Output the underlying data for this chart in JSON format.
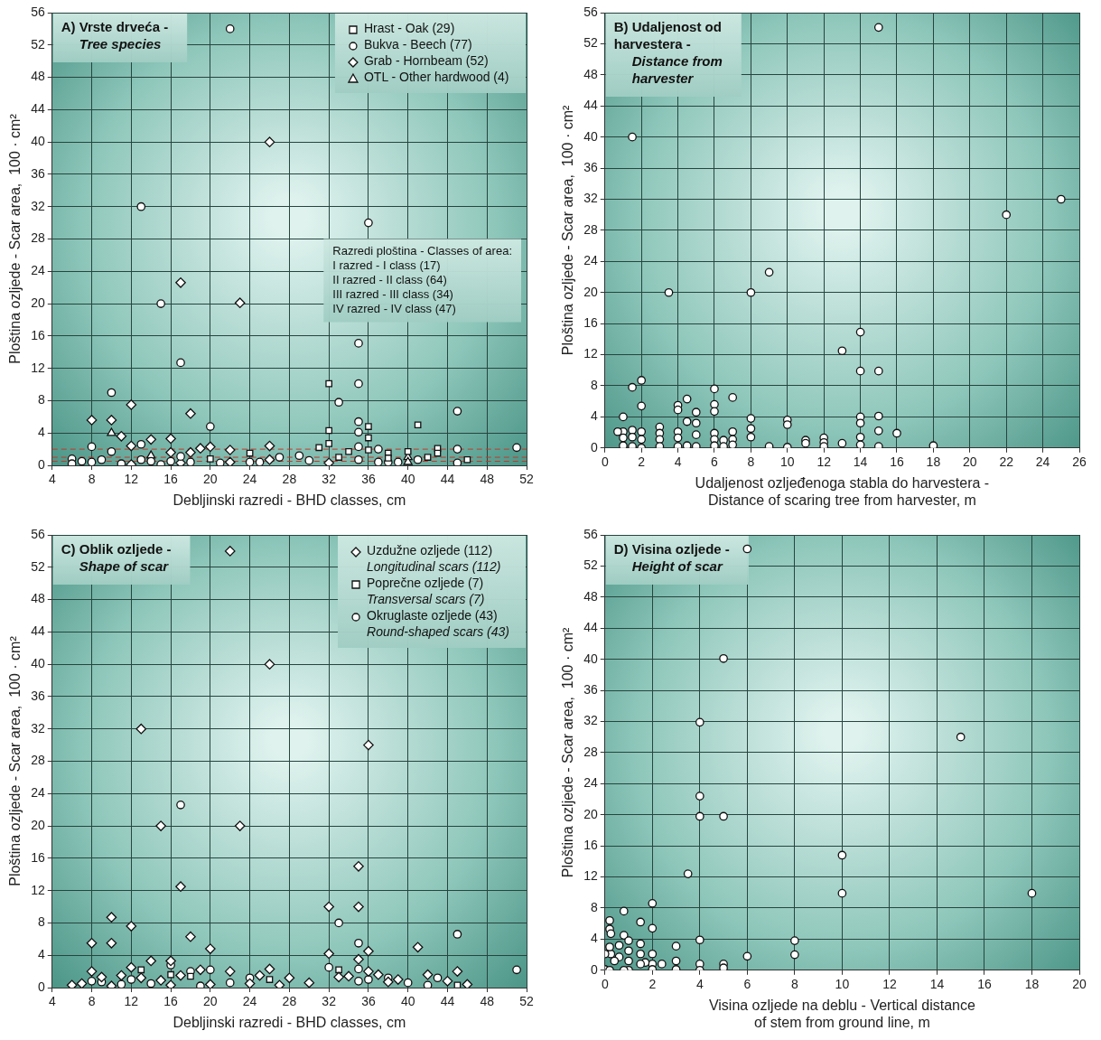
{
  "chart_data": [
    {
      "type": "scatter",
      "title": "A) Vrste drveća -",
      "subtitle": "Tree species",
      "xlabel": "Debljinski razredi - BHD classes, cm",
      "ylabel": "Ploština ozljede - Scar area,  100 · cm²",
      "xlim": [
        4,
        52
      ],
      "xticks": [
        4,
        8,
        12,
        16,
        20,
        24,
        28,
        32,
        36,
        40,
        44,
        48,
        52
      ],
      "ylim": [
        0,
        56
      ],
      "yticks": [
        0,
        4,
        8,
        12,
        16,
        20,
        24,
        28,
        32,
        36,
        40,
        44,
        48,
        52,
        56
      ],
      "grid": true,
      "legend": "top right",
      "annotations": [
        "Razredi ploština - Classes of area:",
        "I razred - I class (17)",
        "II razred - II class (64)",
        "III razred - III class (34)",
        "IV razred - IV class (47)"
      ],
      "ref_lines": [
        {
          "axis": "y",
          "value": 0.5,
          "label": null,
          "color": "#c0392b",
          "line_style": "dashed"
        },
        {
          "axis": "y",
          "value": 1,
          "label": null,
          "color": "#c0392b",
          "line_style": "dashed"
        },
        {
          "axis": "y",
          "value": 2,
          "label": null,
          "color": "#c0392b",
          "line_style": "dashed"
        }
      ],
      "series": [
        {
          "name": "Hrast - Oak (29)",
          "marker": "square",
          "color": "#ffffff",
          "x": [
            32,
            32,
            32,
            31,
            36,
            36,
            41,
            24,
            20,
            34,
            38,
            40,
            43,
            42,
            33,
            36,
            46,
            43,
            38
          ],
          "values": [
            10.1,
            4.3,
            2.7,
            2.2,
            4.8,
            3.4,
            5,
            1.5,
            0.8,
            1.7,
            1.5,
            1.7,
            2.1,
            1,
            1,
            1.9,
            0.7,
            1.5,
            0.9
          ]
        },
        {
          "name": "Bukva - Beech (77)",
          "marker": "circle",
          "color": "#ffffff",
          "x": [
            22,
            13,
            36,
            10,
            15,
            17,
            20,
            35,
            35,
            33,
            35,
            35,
            35,
            35,
            37,
            45,
            45,
            45,
            51,
            10,
            8,
            13,
            29,
            30,
            27,
            39,
            41,
            6,
            6,
            7,
            8,
            9,
            11,
            13,
            14,
            15,
            16,
            17,
            18,
            21,
            24,
            25,
            37,
            38
          ],
          "values": [
            54,
            32,
            30,
            9,
            20,
            12.7,
            4.8,
            15.1,
            10.1,
            7.8,
            5.4,
            4.1,
            2.3,
            0.7,
            2,
            6.7,
            2,
            0.3,
            2.2,
            1.7,
            2.3,
            2.6,
            1.2,
            0.6,
            1,
            0.4,
            0.7,
            0.8,
            0.2,
            0.5,
            0.4,
            0.7,
            0.2,
            0.7,
            0.5,
            0.1,
            0.5,
            1.1,
            0.4,
            0.3,
            0.4,
            0.4,
            0.4,
            0.4
          ]
        },
        {
          "name": "Grab - Hornbeam (52)",
          "marker": "diamond",
          "color": "#ffffff",
          "x": [
            26,
            17,
            23,
            8,
            10,
            12,
            18,
            11,
            14,
            12,
            16,
            20,
            22,
            26,
            18,
            16,
            19,
            32,
            12,
            17,
            22,
            26
          ],
          "values": [
            40,
            22.6,
            20.1,
            5.6,
            5.6,
            7.5,
            6.4,
            3.6,
            3.2,
            2.4,
            3.3,
            2.3,
            1.9,
            2.4,
            1.6,
            1.6,
            2.1,
            0.3,
            0.1,
            0.3,
            0.4,
            0.7
          ]
        },
        {
          "name": "OTL - Other hardwood (4)",
          "marker": "triangle",
          "color": "#ffffff",
          "x": [
            10,
            40,
            40,
            14
          ],
          "values": [
            4,
            1,
            0.4,
            1.2
          ]
        }
      ]
    },
    {
      "type": "scatter",
      "title": "B) Udaljenost od\nharvestera -",
      "subtitle": "Distance from\nharvester",
      "xlabel": "Udaljenost ozljeđenoga stabla do harvestera -\nDistance of scaring tree from harvester, m",
      "ylabel": "Ploština ozljede - Scar area,  100 · cm²",
      "xlim": [
        0,
        26
      ],
      "xticks": [
        0,
        2,
        4,
        6,
        8,
        10,
        12,
        14,
        16,
        18,
        20,
        22,
        24,
        26
      ],
      "ylim": [
        0,
        56
      ],
      "yticks": [
        0,
        4,
        8,
        12,
        16,
        20,
        24,
        28,
        32,
        36,
        40,
        44,
        48,
        52,
        56
      ],
      "grid": true,
      "series": [
        {
          "marker": "circle",
          "color": "#ffffff",
          "x": [
            15,
            1.5,
            25,
            22,
            3.5,
            8,
            9,
            13,
            14,
            14,
            15,
            1.5,
            2,
            2,
            1,
            4,
            4,
            4.5,
            5,
            4.5,
            5,
            6,
            6,
            6,
            7,
            8,
            8,
            8,
            10,
            10,
            15,
            14,
            14,
            15,
            16,
            18,
            13,
            14,
            14,
            15,
            11,
            11,
            12,
            12,
            12,
            10,
            9,
            6.5,
            6.5,
            7,
            7,
            7,
            6,
            6,
            6,
            5,
            5,
            4.5,
            4,
            4,
            4,
            3,
            3,
            3,
            3,
            2,
            2,
            2,
            1.5,
            1.5,
            1.5,
            1,
            1,
            1,
            0.7
          ],
          "values": [
            54.1,
            40,
            32,
            30,
            20,
            20,
            22.6,
            12.5,
            14.9,
            9.9,
            9.9,
            7.8,
            8.7,
            5.4,
            4,
            5.5,
            4.9,
            6.3,
            4.6,
            3.4,
            3.2,
            7.6,
            5.6,
            4.7,
            6.5,
            3.8,
            2.5,
            1.4,
            3.6,
            3,
            4.1,
            4,
            3.2,
            2.2,
            1.9,
            0.3,
            0.6,
            1.4,
            0.4,
            0.2,
            1,
            0.6,
            1.3,
            0.7,
            0.2,
            0.1,
            0.2,
            1,
            0.2,
            2.1,
            1.1,
            0.4,
            1.9,
            1.1,
            0.3,
            1.7,
            0.2,
            0.3,
            2.1,
            1.3,
            0.2,
            2.7,
            1.9,
            1.1,
            0.2,
            2.1,
            1.1,
            0,
            2.3,
            1.4,
            0.2,
            2.1,
            1.3,
            0.3,
            2.1
          ]
        }
      ]
    },
    {
      "type": "scatter",
      "title": "C) Oblik ozljede -",
      "subtitle": "Shape of scar",
      "xlabel": "Debljinski razredi - BHD classes, cm",
      "ylabel": "Ploština ozljede - Scar area,  100 · cm²",
      "xlim": [
        4,
        52
      ],
      "xticks": [
        4,
        8,
        12,
        16,
        20,
        24,
        28,
        32,
        36,
        40,
        44,
        48,
        52
      ],
      "ylim": [
        0,
        56
      ],
      "yticks": [
        0,
        4,
        8,
        12,
        16,
        20,
        24,
        28,
        32,
        36,
        40,
        44,
        48,
        52,
        56
      ],
      "grid": true,
      "legend": "top right",
      "series": [
        {
          "name": "Uzdužne ozljede (112)\nLongitudinal scars (112)",
          "marker": "diamond",
          "color": "#ffffff",
          "x": [
            22,
            26,
            13,
            36,
            15,
            23,
            17,
            35,
            35,
            32,
            10,
            12,
            8,
            10,
            18,
            20,
            36,
            41,
            14,
            16,
            12,
            45,
            8,
            26,
            22,
            35,
            32,
            9,
            11,
            13,
            17,
            19,
            28,
            30,
            34,
            37,
            39,
            42,
            6,
            7,
            16,
            24,
            44,
            46,
            33,
            38,
            20,
            25,
            15,
            36,
            10,
            27
          ],
          "values": [
            54,
            40,
            32,
            30,
            20,
            20,
            12.5,
            15,
            10,
            10,
            8.7,
            7.6,
            5.5,
            5.5,
            6.3,
            4.8,
            4.5,
            5,
            3.3,
            3.3,
            2.5,
            2,
            2,
            2.3,
            2,
            3.5,
            4.2,
            1.3,
            1.5,
            1.2,
            1.5,
            2.2,
            1.2,
            0.6,
            1.4,
            1.6,
            1,
            1.6,
            0.3,
            0.5,
            0.3,
            0.5,
            0.8,
            0.4,
            1.3,
            0.7,
            0.4,
            1.5,
            0.9,
            2,
            0.2,
            0.3
          ]
        },
        {
          "name": "Poprečne ozljede (7)\nTransversal scars (7)",
          "marker": "square",
          "color": "#ffffff",
          "x": [
            13,
            16,
            18,
            26,
            33,
            45
          ],
          "values": [
            2.2,
            1.6,
            1.4,
            1,
            2.2,
            0.3
          ]
        },
        {
          "name": "Okruglaste ozljede (43)\nRound-shaped scars (43)",
          "marker": "circle",
          "color": "#ffffff",
          "x": [
            17,
            33,
            35,
            45,
            51,
            16,
            18,
            24,
            35,
            35,
            20,
            12,
            14,
            9,
            36,
            32,
            40,
            43,
            22,
            8,
            11,
            19,
            38,
            42
          ],
          "values": [
            22.6,
            8,
            5.5,
            6.6,
            2.2,
            2.8,
            2,
            1.2,
            2.3,
            0.8,
            2.2,
            1,
            0.5,
            0.7,
            1,
            2.5,
            0.6,
            1.2,
            0.6,
            0.8,
            0.4,
            0.2,
            1.2,
            0.3
          ]
        }
      ]
    },
    {
      "type": "scatter",
      "title": "D) Visina ozljede -",
      "subtitle": "Height of scar",
      "xlabel": "Visina ozljede na deblu - Vertical distance\nof stem from ground line, m",
      "ylabel": "Ploština ozljede - Scar area,  100 · cm²",
      "xlim": [
        0,
        20
      ],
      "xticks": [
        0,
        2,
        4,
        6,
        8,
        10,
        12,
        14,
        16,
        18,
        20
      ],
      "ylim": [
        0,
        56
      ],
      "yticks": [
        0,
        4,
        8,
        12,
        16,
        20,
        24,
        28,
        32,
        36,
        40,
        44,
        48,
        52,
        56
      ],
      "grid": true,
      "series": [
        {
          "marker": "circle",
          "color": "#ffffff",
          "x": [
            6,
            5,
            4,
            15,
            4,
            4,
            5,
            3.5,
            10,
            10,
            18,
            2,
            0.8,
            0.2,
            0.2,
            0.25,
            0.8,
            1,
            1.5,
            2,
            1.5,
            3,
            4,
            8,
            8,
            6,
            5,
            5,
            4,
            4,
            3,
            3,
            2.4,
            2,
            2,
            2,
            1.7,
            1.5,
            1.5,
            1,
            1,
            1,
            0.8,
            0.6,
            0.6,
            0.25,
            0,
            0.2,
            0.2,
            0.4,
            0
          ],
          "values": [
            54.2,
            40.1,
            31.9,
            30,
            22.4,
            19.8,
            19.8,
            12.4,
            14.8,
            9.9,
            9.9,
            8.6,
            7.6,
            6.4,
            5.3,
            4.7,
            4.5,
            3.8,
            6.2,
            5.4,
            3.4,
            3.1,
            3.9,
            3.8,
            2,
            1.8,
            0.8,
            0.3,
            0.8,
            0,
            1.2,
            0.1,
            0.8,
            2.1,
            0.8,
            0.1,
            1,
            2.1,
            0.8,
            2.5,
            1.2,
            0,
            0,
            3.2,
            1.7,
            2.1,
            0.1,
            0,
            3,
            1.2,
            2.1
          ]
        }
      ]
    }
  ]
}
